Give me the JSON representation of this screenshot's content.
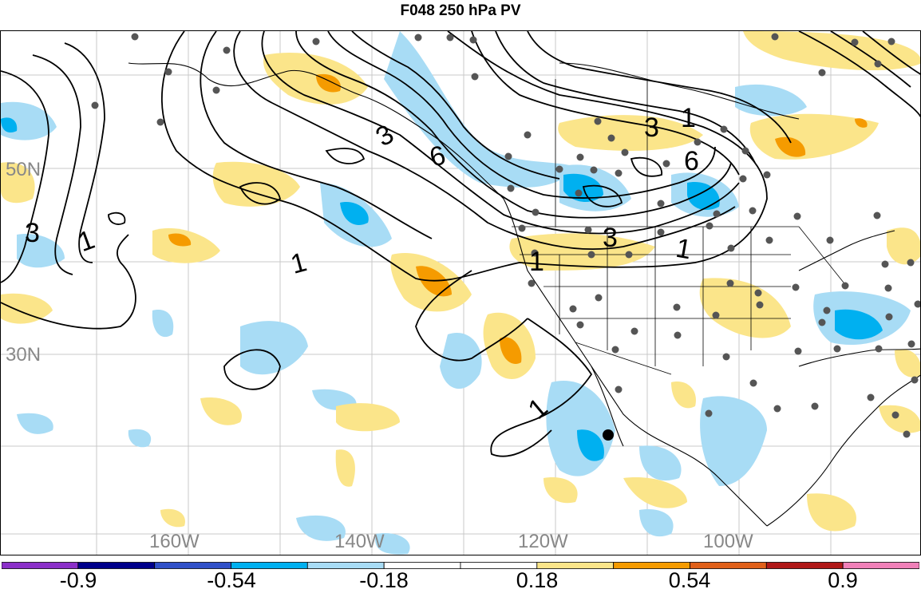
{
  "title": "F048 250 hPa PV",
  "lat_labels": [
    "50N",
    "30N"
  ],
  "lon_labels": [
    "160W",
    "140W",
    "120W",
    "100W"
  ],
  "contour_labels": [
    "3",
    "1",
    "1",
    "3",
    "6",
    "6",
    "3",
    "1",
    "3",
    "1",
    "1",
    "1"
  ],
  "colorbar": {
    "colors": [
      "#8b2fc9",
      "#00008b",
      "#3050c8",
      "#00b0f0",
      "#a8dcf5",
      "#ffffff",
      "#ffffff",
      "#fbe58a",
      "#f59b00",
      "#e0601a",
      "#b01818",
      "#f080b8"
    ],
    "labels": [
      "-0.9",
      "-0.54",
      "-0.18",
      "0.18",
      "0.54",
      "0.9"
    ]
  },
  "colors": {
    "neg_light": "#a8dcf5",
    "neg_mid": "#00b0f0",
    "pos_light": "#fbe58a",
    "pos_mid": "#f59b00"
  }
}
